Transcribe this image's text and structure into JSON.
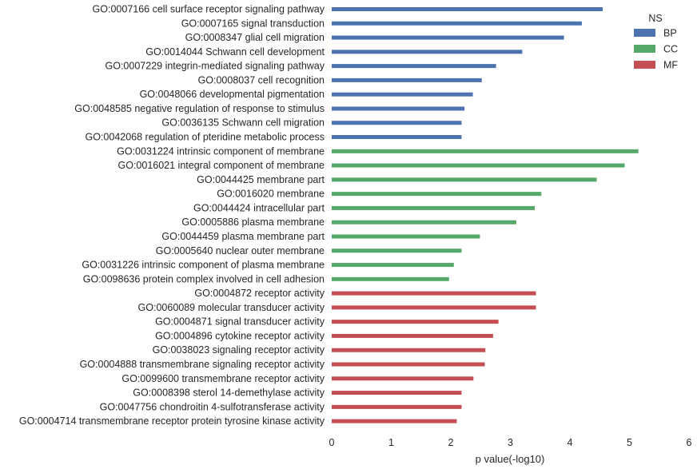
{
  "chart_data": {
    "type": "bar",
    "orientation": "horizontal",
    "xlabel": "p value(-log10)",
    "ylabel": "",
    "xlim": [
      0,
      6
    ],
    "xticks": [
      0,
      1,
      2,
      3,
      4,
      5,
      6
    ],
    "grid": false,
    "legend": {
      "title": "NS",
      "placement": "top-right",
      "entries": [
        {
          "name": "BP",
          "color": "#4c72b0"
        },
        {
          "name": "CC",
          "color": "#55a868"
        },
        {
          "name": "MF",
          "color": "#c44e52"
        }
      ]
    },
    "categories": [
      {
        "label": "GO:0007166 cell surface receptor signaling pathway",
        "value": 4.55,
        "group": "BP"
      },
      {
        "label": "GO:0007165 signal transduction",
        "value": 4.2,
        "group": "BP"
      },
      {
        "label": "GO:0008347 glial cell migration",
        "value": 3.9,
        "group": "BP"
      },
      {
        "label": "GO:0014044 Schwann cell development",
        "value": 3.2,
        "group": "BP"
      },
      {
        "label": "GO:0007229 integrin-mediated signaling pathway",
        "value": 2.76,
        "group": "BP"
      },
      {
        "label": "GO:0008037 cell recognition",
        "value": 2.52,
        "group": "BP"
      },
      {
        "label": "GO:0048066 developmental pigmentation",
        "value": 2.37,
        "group": "BP"
      },
      {
        "label": "GO:0048585 negative regulation of response to stimulus",
        "value": 2.23,
        "group": "BP"
      },
      {
        "label": "GO:0036135 Schwann cell migration",
        "value": 2.18,
        "group": "BP"
      },
      {
        "label": "GO:0042068 regulation of pteridine metabolic process",
        "value": 2.18,
        "group": "BP"
      },
      {
        "label": "GO:0031224 intrinsic component of membrane",
        "value": 5.15,
        "group": "CC"
      },
      {
        "label": "GO:0016021 integral component of membrane",
        "value": 4.92,
        "group": "CC"
      },
      {
        "label": "GO:0044425 membrane part",
        "value": 4.45,
        "group": "CC"
      },
      {
        "label": "GO:0016020 membrane",
        "value": 3.52,
        "group": "CC"
      },
      {
        "label": "GO:0044424 intracellular part",
        "value": 3.41,
        "group": "CC"
      },
      {
        "label": "GO:0005886 plasma membrane",
        "value": 3.1,
        "group": "CC"
      },
      {
        "label": "GO:0044459 plasma membrane part",
        "value": 2.49,
        "group": "CC"
      },
      {
        "label": "GO:0005640 nuclear outer membrane",
        "value": 2.18,
        "group": "CC"
      },
      {
        "label": "GO:0031226 intrinsic component of plasma membrane",
        "value": 2.05,
        "group": "CC"
      },
      {
        "label": "GO:0098636 protein complex involved in cell adhesion",
        "value": 1.97,
        "group": "CC"
      },
      {
        "label": "GO:0004872 receptor activity",
        "value": 3.43,
        "group": "MF"
      },
      {
        "label": "GO:0060089 molecular transducer activity",
        "value": 3.43,
        "group": "MF"
      },
      {
        "label": "GO:0004871 signal transducer activity",
        "value": 2.8,
        "group": "MF"
      },
      {
        "label": "GO:0004896 cytokine receptor activity",
        "value": 2.71,
        "group": "MF"
      },
      {
        "label": "GO:0038023 signaling receptor activity",
        "value": 2.58,
        "group": "MF"
      },
      {
        "label": "GO:0004888 transmembrane signaling receptor activity",
        "value": 2.57,
        "group": "MF"
      },
      {
        "label": "GO:0099600 transmembrane receptor activity",
        "value": 2.38,
        "group": "MF"
      },
      {
        "label": "GO:0008398 sterol 14-demethylase activity",
        "value": 2.18,
        "group": "MF"
      },
      {
        "label": "GO:0047756 chondroitin 4-sulfotransferase activity",
        "value": 2.18,
        "group": "MF"
      },
      {
        "label": "GO:0004714 transmembrane receptor protein tyrosine kinase activity",
        "value": 2.1,
        "group": "MF"
      }
    ]
  }
}
